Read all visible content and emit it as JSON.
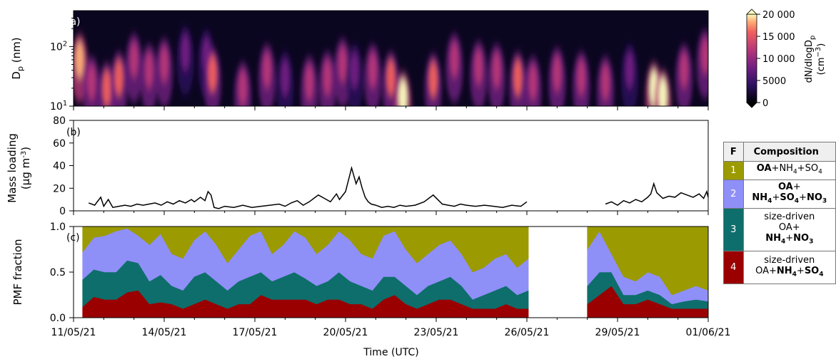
{
  "figure": {
    "x_axis": {
      "label": "Time (UTC)",
      "tick_labels": [
        "11/05/21",
        "14/05/21",
        "17/05/21",
        "20/05/21",
        "23/05/21",
        "26/05/21",
        "29/05/21",
        "01/06/21"
      ],
      "range_days": [
        0,
        21
      ]
    }
  },
  "panels": {
    "a": {
      "tag": "(a)",
      "ylabel": "D",
      "ylabel_sub": "p",
      "ylabel_unit": " (nm)",
      "y_tick_labels": [
        "10",
        "10"
      ],
      "y_tick_exps": [
        "1",
        "2"
      ],
      "colorbar": {
        "label_main": "dN/dlogD",
        "label_sub": "p",
        "label_unit": "(cm",
        "label_unit_exp": "−3",
        "label_unit_close": ")",
        "tick_labels": [
          "20 000",
          "15 000",
          "10 000",
          "5000",
          "0"
        ],
        "colormap": "magma"
      }
    },
    "b": {
      "tag": "(b)",
      "ylabel_line1": "Mass loading",
      "ylabel_line2": "(µg m",
      "ylabel_exp": "-3",
      "ylabel_close": ")",
      "y_tick_labels": [
        "0",
        "20",
        "40",
        "60",
        "80"
      ]
    },
    "c": {
      "tag": "(c)",
      "ylabel": "PMF fraction",
      "y_tick_labels": [
        "0.0",
        "0.5",
        "1.0"
      ]
    }
  },
  "legend_table": {
    "header_f": "F",
    "header_composition": "Composition",
    "rows": [
      {
        "num": "1",
        "color": "#9b9a00",
        "lines": [
          "OA+NH4+SO4"
        ]
      },
      {
        "num": "2",
        "color": "#8f8ff8",
        "lines": [
          "OA+",
          "NH4+SO4+NO3"
        ]
      },
      {
        "num": "3",
        "color": "#0e6e6b",
        "lines": [
          "size-driven",
          "OA+",
          "NH4+NO3"
        ]
      },
      {
        "num": "4",
        "color": "#9a0000",
        "lines": [
          "size-driven",
          "OA+NH4+SO4"
        ]
      }
    ]
  },
  "chart_data": [
    {
      "type": "heatmap",
      "title": "",
      "xlabel": "",
      "ylabel": "Dp (nm)",
      "y_scale": "log",
      "ylim": [
        10,
        400
      ],
      "colorbar_range": [
        0,
        20000
      ],
      "events": [
        {
          "t": 0.2,
          "dp": 60,
          "value": 17000
        },
        {
          "t": 0.6,
          "dp": 25,
          "value": 12000
        },
        {
          "t": 1.1,
          "dp": 20,
          "value": 14000
        },
        {
          "t": 1.5,
          "dp": 30,
          "value": 13000
        },
        {
          "t": 2.0,
          "dp": 60,
          "value": 9000
        },
        {
          "t": 2.5,
          "dp": 40,
          "value": 10000
        },
        {
          "t": 3.0,
          "dp": 50,
          "value": 9000
        },
        {
          "t": 3.7,
          "dp": 80,
          "value": 7000
        },
        {
          "t": 4.4,
          "dp": 70,
          "value": 8000
        },
        {
          "t": 4.6,
          "dp": 35,
          "value": 14000
        },
        {
          "t": 5.6,
          "dp": 20,
          "value": 12000
        },
        {
          "t": 6.4,
          "dp": 40,
          "value": 11000
        },
        {
          "t": 7.0,
          "dp": 30,
          "value": 8000
        },
        {
          "t": 7.8,
          "dp": 25,
          "value": 9000
        },
        {
          "t": 8.4,
          "dp": 30,
          "value": 10000
        },
        {
          "t": 8.9,
          "dp": 50,
          "value": 9000
        },
        {
          "t": 9.3,
          "dp": 40,
          "value": 8000
        },
        {
          "t": 9.9,
          "dp": 40,
          "value": 9000
        },
        {
          "t": 10.5,
          "dp": 30,
          "value": 13000
        },
        {
          "t": 10.9,
          "dp": 14,
          "value": 20000
        },
        {
          "t": 11.9,
          "dp": 28,
          "value": 15000
        },
        {
          "t": 12.6,
          "dp": 60,
          "value": 12000
        },
        {
          "t": 13.4,
          "dp": 45,
          "value": 10000
        },
        {
          "t": 14.0,
          "dp": 40,
          "value": 11000
        },
        {
          "t": 14.7,
          "dp": 30,
          "value": 13000
        },
        {
          "t": 15.2,
          "dp": 25,
          "value": 10000
        },
        {
          "t": 16.0,
          "dp": 35,
          "value": 9000
        },
        {
          "t": 16.8,
          "dp": 30,
          "value": 10000
        },
        {
          "t": 17.6,
          "dp": 25,
          "value": 9000
        },
        {
          "t": 18.4,
          "dp": 40,
          "value": 8000
        },
        {
          "t": 19.2,
          "dp": 20,
          "value": 19000
        },
        {
          "t": 19.5,
          "dp": 15,
          "value": 20000
        },
        {
          "t": 20.2,
          "dp": 40,
          "value": 11000
        },
        {
          "t": 20.9,
          "dp": 70,
          "value": 12000
        }
      ]
    },
    {
      "type": "line",
      "title": "",
      "xlabel": "",
      "ylabel": "Mass loading (µg m-3)",
      "ylim": [
        0,
        80
      ],
      "gap_days": [
        15.05,
        17.5
      ],
      "x": [
        0.5,
        0.7,
        0.9,
        1.0,
        1.15,
        1.3,
        1.5,
        1.7,
        1.9,
        2.1,
        2.3,
        2.5,
        2.7,
        2.9,
        3.1,
        3.3,
        3.5,
        3.7,
        3.9,
        4.0,
        4.2,
        4.35,
        4.45,
        4.55,
        4.65,
        4.8,
        5.0,
        5.3,
        5.6,
        5.9,
        6.2,
        6.5,
        6.8,
        7.0,
        7.2,
        7.4,
        7.6,
        7.8,
        8.0,
        8.1,
        8.3,
        8.5,
        8.7,
        8.8,
        9.0,
        9.2,
        9.35,
        9.45,
        9.55,
        9.65,
        9.75,
        9.85,
        10.0,
        10.2,
        10.4,
        10.6,
        10.8,
        11.0,
        11.3,
        11.6,
        11.9,
        12.2,
        12.4,
        12.6,
        12.8,
        13.0,
        13.3,
        13.6,
        13.9,
        14.2,
        14.5,
        14.8,
        15.0,
        17.6,
        17.8,
        18.0,
        18.2,
        18.4,
        18.6,
        18.8,
        19.0,
        19.1,
        19.2,
        19.3,
        19.5,
        19.7,
        19.9,
        20.1,
        20.3,
        20.5,
        20.7,
        20.85,
        20.95,
        21.0
      ],
      "y": [
        7,
        5,
        12,
        4,
        10,
        3,
        4,
        5,
        4,
        6,
        5,
        6,
        7,
        5,
        8,
        6,
        9,
        7,
        10,
        8,
        12,
        9,
        17,
        14,
        3,
        2,
        4,
        3,
        5,
        3,
        4,
        5,
        6,
        4,
        7,
        9,
        5,
        8,
        12,
        14,
        11,
        8,
        15,
        10,
        17,
        38,
        24,
        30,
        20,
        12,
        8,
        6,
        5,
        3,
        4,
        3,
        5,
        4,
        5,
        8,
        14,
        6,
        5,
        4,
        6,
        5,
        4,
        5,
        4,
        3,
        5,
        4,
        8,
        6,
        8,
        5,
        9,
        7,
        10,
        8,
        12,
        15,
        24,
        16,
        11,
        13,
        12,
        16,
        14,
        12,
        15,
        11,
        17,
        12
      ]
    },
    {
      "type": "area",
      "title": "",
      "xlabel": "",
      "ylabel": "PMF fraction",
      "ylim": [
        0,
        1
      ],
      "x_range": [
        0.3,
        21
      ],
      "gap_days": [
        15.05,
        17.0
      ],
      "series": [
        {
          "name": "1",
          "color": "#9b9a00",
          "values": [
            0.28,
            0.12,
            0.1,
            0.05,
            0.02,
            0.1,
            0.2,
            0.08,
            0.3,
            0.35,
            0.15,
            0.05,
            0.2,
            0.4,
            0.25,
            0.1,
            0.05,
            0.3,
            0.2,
            0.05,
            0.12,
            0.3,
            0.2,
            0.05,
            0.15,
            0.3,
            0.35,
            0.1,
            0.05,
            0.25,
            0.4,
            0.3,
            0.2,
            0.15,
            0.3,
            0.5,
            0.45,
            0.35,
            0.3,
            0.45,
            0.35,
            0.25,
            0.05,
            0.3,
            0.55,
            0.6,
            0.5,
            0.55,
            0.75,
            0.7,
            0.65,
            0.7
          ]
        },
        {
          "name": "2",
          "color": "#8f8ff8",
          "values": [
            0.3,
            0.35,
            0.4,
            0.45,
            0.35,
            0.3,
            0.4,
            0.45,
            0.35,
            0.35,
            0.4,
            0.45,
            0.4,
            0.3,
            0.35,
            0.45,
            0.45,
            0.3,
            0.35,
            0.45,
            0.45,
            0.35,
            0.4,
            0.45,
            0.45,
            0.35,
            0.35,
            0.45,
            0.5,
            0.4,
            0.35,
            0.35,
            0.4,
            0.4,
            0.35,
            0.3,
            0.3,
            0.35,
            0.35,
            0.3,
            0.35,
            0.4,
            0.45,
            0.2,
            0.2,
            0.15,
            0.2,
            0.2,
            0.1,
            0.12,
            0.15,
            0.12
          ]
        },
        {
          "name": "3",
          "color": "#0e6e6b",
          "values": [
            0.3,
            0.3,
            0.3,
            0.3,
            0.35,
            0.3,
            0.25,
            0.3,
            0.2,
            0.2,
            0.3,
            0.3,
            0.25,
            0.2,
            0.25,
            0.3,
            0.25,
            0.2,
            0.25,
            0.3,
            0.23,
            0.2,
            0.2,
            0.3,
            0.25,
            0.2,
            0.2,
            0.25,
            0.2,
            0.2,
            0.15,
            0.2,
            0.2,
            0.25,
            0.2,
            0.1,
            0.15,
            0.2,
            0.2,
            0.15,
            0.2,
            0.2,
            0.25,
            0.15,
            0.1,
            0.1,
            0.1,
            0.1,
            0.05,
            0.08,
            0.1,
            0.08
          ]
        },
        {
          "name": "4",
          "color": "#9a0000",
          "values": [
            0.12,
            0.23,
            0.2,
            0.2,
            0.28,
            0.3,
            0.15,
            0.17,
            0.15,
            0.1,
            0.15,
            0.2,
            0.15,
            0.1,
            0.15,
            0.15,
            0.25,
            0.2,
            0.2,
            0.2,
            0.2,
            0.15,
            0.2,
            0.2,
            0.15,
            0.15,
            0.1,
            0.2,
            0.25,
            0.15,
            0.1,
            0.15,
            0.2,
            0.2,
            0.15,
            0.1,
            0.1,
            0.1,
            0.15,
            0.1,
            0.1,
            0.15,
            0.25,
            0.35,
            0.15,
            0.15,
            0.2,
            0.15,
            0.1,
            0.1,
            0.1,
            0.1
          ]
        }
      ]
    }
  ]
}
